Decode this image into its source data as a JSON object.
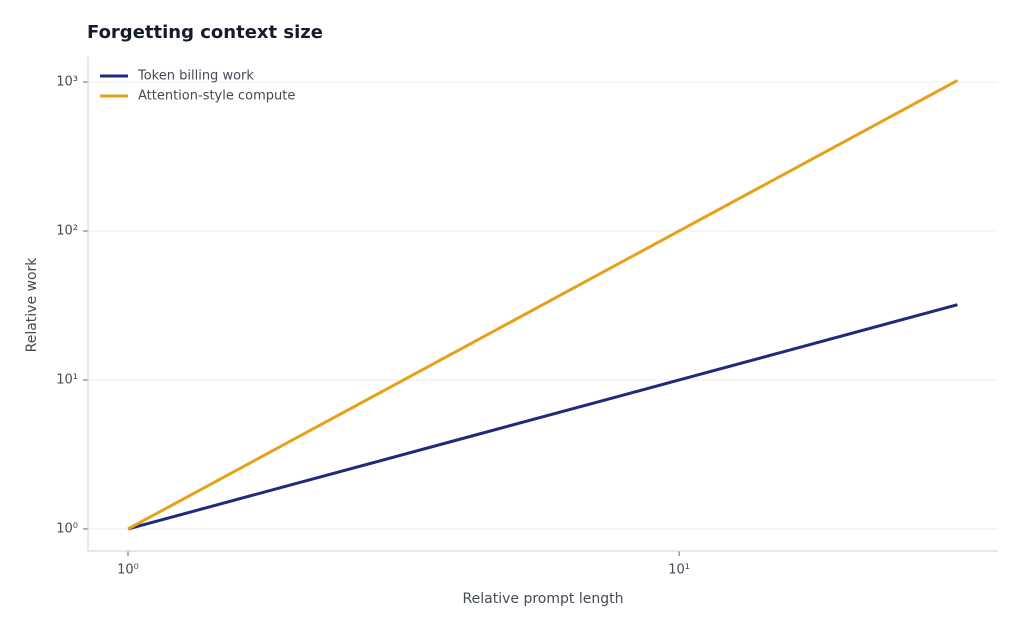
{
  "chart_data": {
    "type": "line",
    "title": "Forgetting context size",
    "x_label": "Relative prompt length",
    "y_label": "Relative work",
    "x": [
      1,
      2,
      4,
      8,
      16,
      32
    ],
    "series": [
      {
        "name": "Token billing work",
        "color": "#1f2a7a",
        "values": [
          1,
          2,
          4,
          8,
          16,
          32
        ]
      },
      {
        "name": "Attention-style compute",
        "color": "#e6a11c",
        "values": [
          1,
          4,
          16,
          64,
          256,
          1024
        ]
      }
    ],
    "x_scale": "log",
    "y_scale": "log",
    "xlim": [
      0.846,
      37.9
    ],
    "ylim": [
      0.711,
      1472
    ],
    "xticks": [
      {
        "value": 1,
        "label": "10⁰"
      },
      {
        "value": 10,
        "label": "10¹"
      }
    ],
    "yticks": [
      {
        "value": 1,
        "label": "10⁰"
      },
      {
        "value": 10,
        "label": "10¹"
      },
      {
        "value": 100,
        "label": "10²"
      },
      {
        "value": 1000,
        "label": "10³"
      }
    ],
    "grid": true,
    "legend": "upper left"
  }
}
